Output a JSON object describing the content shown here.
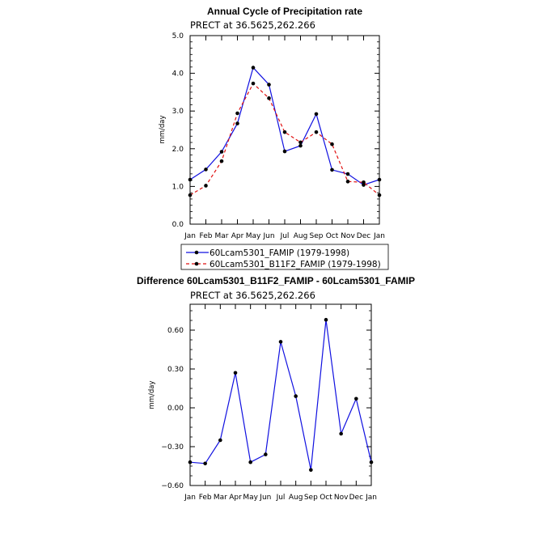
{
  "chart_data": [
    {
      "type": "line",
      "title": "Annual Cycle of Precipitation rate",
      "subtitle": "PRECT at 36.5625,262.266",
      "ylabel": "mm/day",
      "xlabel": "",
      "categories": [
        "Jan",
        "Feb",
        "Mar",
        "Apr",
        "May",
        "Jun",
        "Jul",
        "Aug",
        "Sep",
        "Oct",
        "Nov",
        "Dec",
        "Jan"
      ],
      "ylim": [
        0,
        5
      ],
      "yticks": [
        0,
        1,
        2,
        3,
        4,
        5
      ],
      "ytick_labels": [
        "0.0",
        "1.0",
        "2.0",
        "3.0",
        "4.0",
        "5.0"
      ],
      "legend_position": "below",
      "series": [
        {
          "name": "60Lcam5301_FAMIP (1979-1998)",
          "color": "#1010e0",
          "dash": "solid",
          "values": [
            1.18,
            1.45,
            1.92,
            2.67,
            4.15,
            3.7,
            1.93,
            2.08,
            2.92,
            1.44,
            1.33,
            1.04,
            1.18
          ]
        },
        {
          "name": "60Lcam5301_B11F2_FAMIP (1979-1998)",
          "color": "#e01010",
          "dash": "dashed",
          "values": [
            0.77,
            1.02,
            1.67,
            2.94,
            3.73,
            3.34,
            2.44,
            2.17,
            2.44,
            2.12,
            1.13,
            1.11,
            0.77
          ]
        }
      ]
    },
    {
      "type": "line",
      "title": "Difference 60Lcam5301_B11F2_FAMIP - 60Lcam5301_FAMIP",
      "subtitle": "PRECT at 36.5625,262.266",
      "ylabel": "mm/day",
      "xlabel": "",
      "categories": [
        "Jan",
        "Feb",
        "Mar",
        "Apr",
        "May",
        "Jun",
        "Jul",
        "Aug",
        "Sep",
        "Oct",
        "Nov",
        "Dec",
        "Jan"
      ],
      "ylim": [
        -0.6,
        0.8
      ],
      "yticks": [
        -0.6,
        -0.3,
        0.0,
        0.3,
        0.6
      ],
      "ytick_labels": [
        "−0.60",
        "−0.30",
        "0.00",
        "0.30",
        "0.60"
      ],
      "series": [
        {
          "name": "difference",
          "color": "#1010e0",
          "dash": "solid",
          "values": [
            -0.42,
            -0.43,
            -0.25,
            0.27,
            -0.42,
            -0.36,
            0.51,
            0.09,
            -0.48,
            0.68,
            -0.2,
            0.07,
            -0.42
          ]
        }
      ]
    }
  ]
}
